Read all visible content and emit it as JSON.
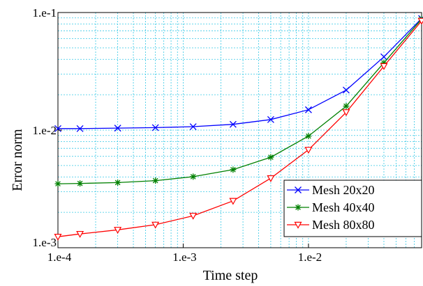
{
  "chart_data": {
    "type": "line",
    "xlabel": "Time step",
    "ylabel": "Error norm",
    "xscale": "log",
    "yscale": "log",
    "xlim": [
      0.0001,
      0.08
    ],
    "ylim": [
      0.001,
      0.1
    ],
    "x_ticks": [
      {
        "value": 0.0001,
        "label": "1.e-4"
      },
      {
        "value": 0.001,
        "label": "1.e-3"
      },
      {
        "value": 0.01,
        "label": "1.e-2"
      }
    ],
    "y_ticks": [
      {
        "value": 0.001,
        "label": "1.e-3"
      },
      {
        "value": 0.01,
        "label": "1.e-2"
      },
      {
        "value": 0.1,
        "label": "1.e-1"
      }
    ],
    "grid": true,
    "grid_color": "#33c8e6",
    "legend_position": "bottom-right",
    "x": [
      0.0001,
      0.00015,
      0.0003,
      0.0006,
      0.0012,
      0.0025,
      0.005,
      0.01,
      0.02,
      0.04,
      0.08
    ],
    "series": [
      {
        "name": "Mesh 20x20",
        "color": "#0000ff",
        "marker": "x",
        "values": [
          0.0103,
          0.0103,
          0.0104,
          0.0105,
          0.0107,
          0.0112,
          0.0123,
          0.0149,
          0.0219,
          0.042,
          0.089
        ]
      },
      {
        "name": "Mesh 40x40",
        "color": "#008000",
        "marker": "star",
        "values": [
          0.0035,
          0.00352,
          0.00358,
          0.00372,
          0.00402,
          0.00461,
          0.00588,
          0.0089,
          0.016,
          0.0374,
          0.088
        ]
      },
      {
        "name": "Mesh 80x80",
        "color": "#ff0000",
        "marker": "triangle-down",
        "values": [
          0.00124,
          0.00131,
          0.00142,
          0.00157,
          0.00187,
          0.0025,
          0.0039,
          0.0068,
          0.0142,
          0.035,
          0.085
        ]
      }
    ]
  }
}
